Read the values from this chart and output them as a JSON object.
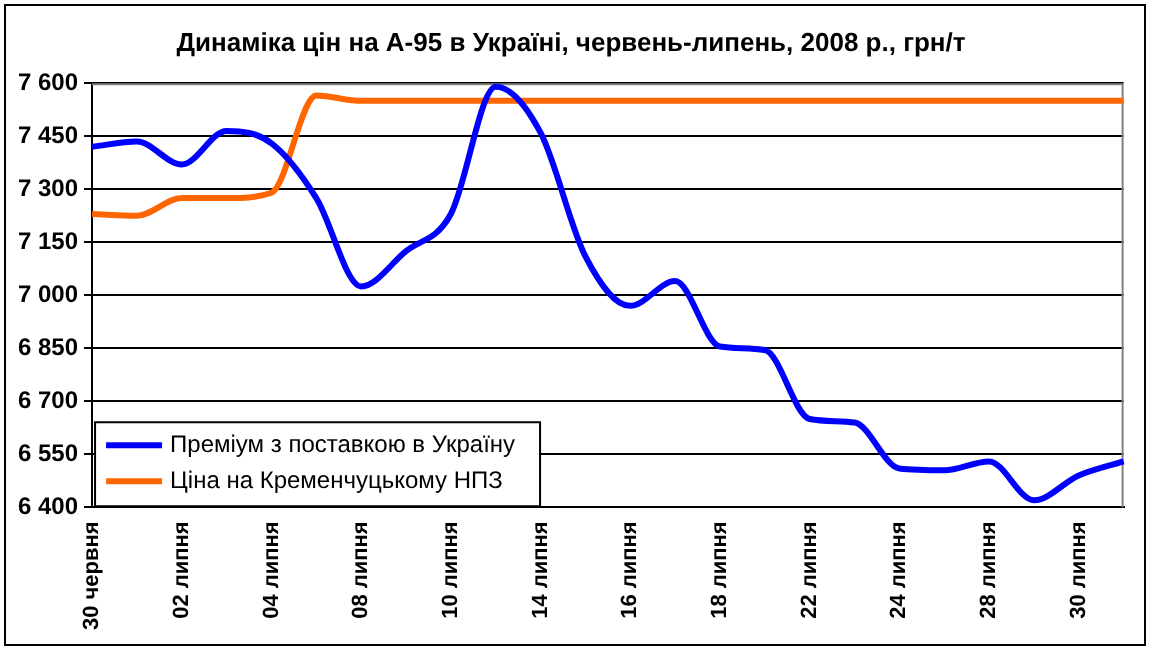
{
  "chart_data": {
    "type": "line",
    "title": "Динаміка цін на А-95 в Україні, червень-липень, 2008 р., грн/т",
    "categories": [
      "30 червня",
      null,
      "02 липня",
      null,
      "04 липня",
      null,
      "08 липня",
      null,
      "10 липня",
      null,
      "14 липня",
      null,
      "16 липня",
      null,
      "18 липня",
      null,
      "22 липня",
      null,
      "24 липня",
      null,
      "28 липня",
      null,
      "30 липня",
      null
    ],
    "series": [
      {
        "name": "Преміум з поставкою в Україну",
        "color": "#0000ff",
        "values": [
          7420,
          7435,
          7370,
          7465,
          7430,
          7275,
          7025,
          7125,
          7230,
          7590,
          7460,
          7110,
          6970,
          7040,
          6855,
          6845,
          6650,
          6640,
          6510,
          6505,
          6530,
          6420,
          6490,
          6530
        ]
      },
      {
        "name": "Ціна на Кременчуцькому НПЗ",
        "color": "#ff6600",
        "values": [
          7230,
          7225,
          7275,
          7275,
          7290,
          7565,
          7550,
          7550,
          7550,
          7550,
          7550,
          7550,
          7550,
          7550,
          7550,
          7550,
          7550,
          7550,
          7550,
          7550,
          7550,
          7550,
          7550,
          7550
        ]
      }
    ],
    "ylim": [
      6400,
      7600
    ],
    "yticks": [
      {
        "value": 6400,
        "label": "6 400"
      },
      {
        "value": 6550,
        "label": "6 550"
      },
      {
        "value": 6700,
        "label": "6 700"
      },
      {
        "value": 6850,
        "label": "6 850"
      },
      {
        "value": 7000,
        "label": "7 000"
      },
      {
        "value": 7150,
        "label": "7 150"
      },
      {
        "value": 7300,
        "label": "7 300"
      },
      {
        "value": 7450,
        "label": "7 450"
      },
      {
        "value": 7600,
        "label": "7 600"
      }
    ],
    "grid": "y",
    "legend": "bottom left",
    "marker": "none",
    "line_style": "solid"
  }
}
